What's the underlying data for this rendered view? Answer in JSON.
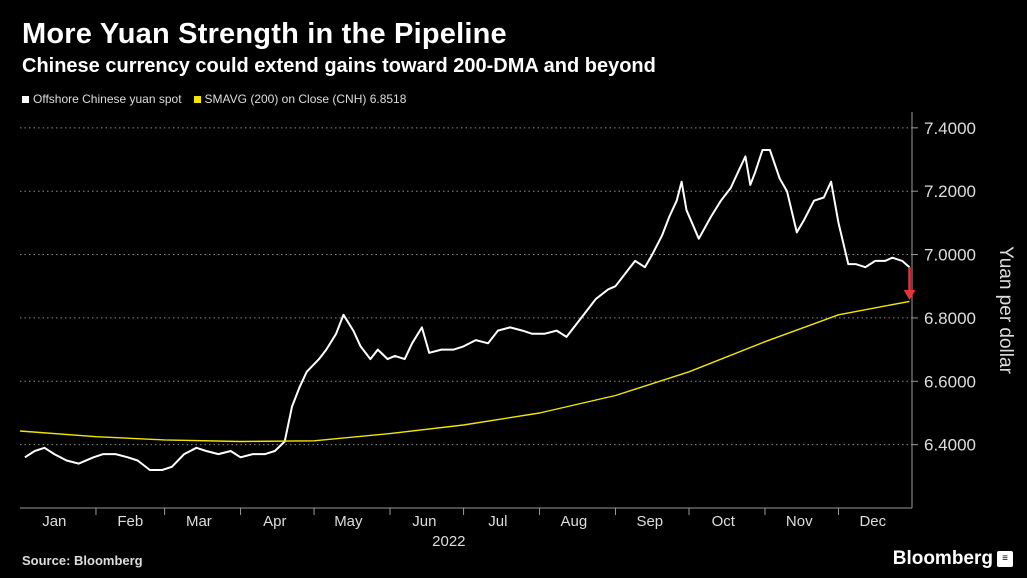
{
  "header": {
    "title": "More Yuan Strength in the Pipeline",
    "subtitle": "Chinese currency could extend gains toward 200-DMA and beyond"
  },
  "legend": [
    {
      "label": "Offshore Chinese yuan spot",
      "color": "#ffffff"
    },
    {
      "label": "SMAVG (200)  on Close (CNH) 6.8518",
      "color": "#f2e600"
    }
  ],
  "footer": {
    "source": "Source: Bloomberg",
    "brand": "Bloomberg",
    "brand_icon": "menu-icon"
  },
  "chart_data": {
    "type": "line",
    "ylabel": "Yuan per dollar",
    "xlabel": "2022",
    "ylim": [
      6.2,
      7.45
    ],
    "yticks": [
      "6.4000",
      "6.6000",
      "6.8000",
      "7.0000",
      "7.2000",
      "7.4000"
    ],
    "grid": true,
    "x_ticks": [
      "Jan",
      "Feb",
      "Mar",
      "Apr",
      "May",
      "Jun",
      "Jul",
      "Aug",
      "Sep",
      "Oct",
      "Nov",
      "Dec"
    ],
    "x_start": "2022-01-01",
    "x_end": "2022-12-31",
    "annotation": {
      "type": "arrow",
      "color": "#e8323c",
      "from": [
        "2022-12-30",
        6.96
      ],
      "to": [
        "2022-12-30",
        6.86
      ]
    },
    "series": [
      {
        "name": "Offshore Chinese yuan spot",
        "color": "#ffffff",
        "points": [
          [
            "2022-01-03",
            6.36
          ],
          [
            "2022-01-07",
            6.38
          ],
          [
            "2022-01-11",
            6.39
          ],
          [
            "2022-01-15",
            6.37
          ],
          [
            "2022-01-20",
            6.35
          ],
          [
            "2022-01-25",
            6.34
          ],
          [
            "2022-01-31",
            6.36
          ],
          [
            "2022-02-04",
            6.37
          ],
          [
            "2022-02-09",
            6.37
          ],
          [
            "2022-02-14",
            6.36
          ],
          [
            "2022-02-18",
            6.35
          ],
          [
            "2022-02-23",
            6.32
          ],
          [
            "2022-02-28",
            6.32
          ],
          [
            "2022-03-04",
            6.33
          ],
          [
            "2022-03-09",
            6.37
          ],
          [
            "2022-03-14",
            6.39
          ],
          [
            "2022-03-18",
            6.38
          ],
          [
            "2022-03-23",
            6.37
          ],
          [
            "2022-03-28",
            6.38
          ],
          [
            "2022-04-01",
            6.36
          ],
          [
            "2022-04-06",
            6.37
          ],
          [
            "2022-04-11",
            6.37
          ],
          [
            "2022-04-15",
            6.38
          ],
          [
            "2022-04-19",
            6.41
          ],
          [
            "2022-04-22",
            6.52
          ],
          [
            "2022-04-25",
            6.58
          ],
          [
            "2022-04-28",
            6.63
          ],
          [
            "2022-05-03",
            6.67
          ],
          [
            "2022-05-06",
            6.7
          ],
          [
            "2022-05-10",
            6.75
          ],
          [
            "2022-05-13",
            6.81
          ],
          [
            "2022-05-17",
            6.76
          ],
          [
            "2022-05-20",
            6.71
          ],
          [
            "2022-05-24",
            6.67
          ],
          [
            "2022-05-27",
            6.7
          ],
          [
            "2022-05-31",
            6.67
          ],
          [
            "2022-06-03",
            6.68
          ],
          [
            "2022-06-07",
            6.67
          ],
          [
            "2022-06-10",
            6.72
          ],
          [
            "2022-06-14",
            6.77
          ],
          [
            "2022-06-17",
            6.69
          ],
          [
            "2022-06-22",
            6.7
          ],
          [
            "2022-06-27",
            6.7
          ],
          [
            "2022-07-01",
            6.71
          ],
          [
            "2022-07-06",
            6.73
          ],
          [
            "2022-07-11",
            6.72
          ],
          [
            "2022-07-15",
            6.76
          ],
          [
            "2022-07-20",
            6.77
          ],
          [
            "2022-07-25",
            6.76
          ],
          [
            "2022-07-29",
            6.75
          ],
          [
            "2022-08-03",
            6.75
          ],
          [
            "2022-08-08",
            6.76
          ],
          [
            "2022-08-12",
            6.74
          ],
          [
            "2022-08-16",
            6.78
          ],
          [
            "2022-08-20",
            6.82
          ],
          [
            "2022-08-24",
            6.86
          ],
          [
            "2022-08-29",
            6.89
          ],
          [
            "2022-09-01",
            6.9
          ],
          [
            "2022-09-06",
            6.95
          ],
          [
            "2022-09-09",
            6.98
          ],
          [
            "2022-09-13",
            6.96
          ],
          [
            "2022-09-16",
            7.0
          ],
          [
            "2022-09-20",
            7.06
          ],
          [
            "2022-09-23",
            7.12
          ],
          [
            "2022-09-26",
            7.17
          ],
          [
            "2022-09-28",
            7.23
          ],
          [
            "2022-09-30",
            7.14
          ],
          [
            "2022-10-05",
            7.05
          ],
          [
            "2022-10-10",
            7.12
          ],
          [
            "2022-10-14",
            7.17
          ],
          [
            "2022-10-18",
            7.21
          ],
          [
            "2022-10-21",
            7.26
          ],
          [
            "2022-10-24",
            7.31
          ],
          [
            "2022-10-26",
            7.22
          ],
          [
            "2022-10-28",
            7.26
          ],
          [
            "2022-10-31",
            7.33
          ],
          [
            "2022-11-03",
            7.33
          ],
          [
            "2022-11-07",
            7.24
          ],
          [
            "2022-11-10",
            7.2
          ],
          [
            "2022-11-14",
            7.07
          ],
          [
            "2022-11-17",
            7.11
          ],
          [
            "2022-11-21",
            7.17
          ],
          [
            "2022-11-25",
            7.18
          ],
          [
            "2022-11-28",
            7.23
          ],
          [
            "2022-12-01",
            7.1
          ],
          [
            "2022-12-05",
            6.97
          ],
          [
            "2022-12-08",
            6.97
          ],
          [
            "2022-12-12",
            6.96
          ],
          [
            "2022-12-16",
            6.98
          ],
          [
            "2022-12-20",
            6.98
          ],
          [
            "2022-12-23",
            6.99
          ],
          [
            "2022-12-27",
            6.98
          ],
          [
            "2022-12-30",
            6.96
          ]
        ]
      },
      {
        "name": "SMAVG (200)  on Close (CNH) 6.8518",
        "color": "#f2e600",
        "points": [
          [
            "2022-01-01",
            6.443
          ],
          [
            "2022-02-01",
            6.425
          ],
          [
            "2022-03-01",
            6.415
          ],
          [
            "2022-04-01",
            6.41
          ],
          [
            "2022-05-01",
            6.412
          ],
          [
            "2022-06-01",
            6.435
          ],
          [
            "2022-07-01",
            6.462
          ],
          [
            "2022-08-01",
            6.5
          ],
          [
            "2022-09-01",
            6.555
          ],
          [
            "2022-10-01",
            6.63
          ],
          [
            "2022-11-01",
            6.725
          ],
          [
            "2022-12-01",
            6.81
          ],
          [
            "2022-12-30",
            6.852
          ]
        ]
      }
    ]
  }
}
